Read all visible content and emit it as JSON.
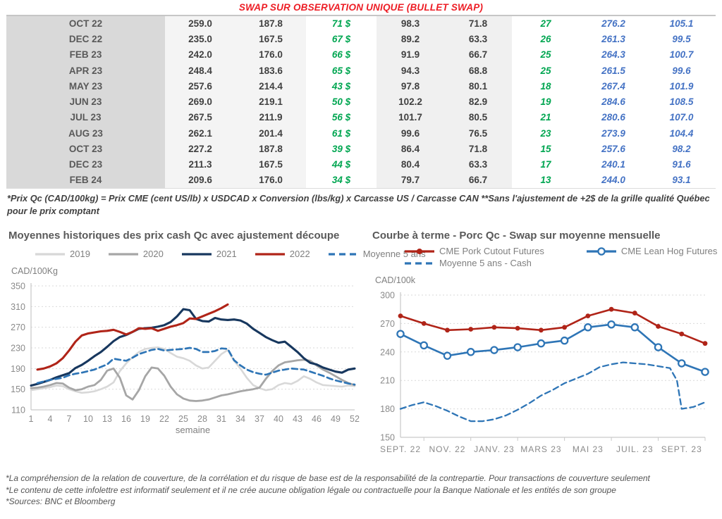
{
  "table": {
    "title": "SWAP SUR OBSERVATION UNIQUE (BULLET SWAP)",
    "rows": [
      [
        "OCT 22",
        "259.0",
        "187.8",
        "71 $",
        "98.3",
        "71.8",
        "27",
        "276.2",
        "105.1"
      ],
      [
        "DEC 22",
        "235.0",
        "167.5",
        "67 $",
        "89.2",
        "63.3",
        "26",
        "261.3",
        "99.5"
      ],
      [
        "FEB 23",
        "242.0",
        "176.0",
        "66 $",
        "91.9",
        "66.7",
        "25",
        "264.3",
        "100.7"
      ],
      [
        "APR 23",
        "248.4",
        "183.6",
        "65 $",
        "94.3",
        "68.8",
        "25",
        "261.5",
        "99.6"
      ],
      [
        "MAY 23",
        "257.6",
        "214.4",
        "43 $",
        "97.8",
        "80.1",
        "18",
        "267.4",
        "101.9"
      ],
      [
        "JUN 23",
        "269.0",
        "219.1",
        "50 $",
        "102.2",
        "82.9",
        "19",
        "284.6",
        "108.5"
      ],
      [
        "JUL 23",
        "267.5",
        "211.9",
        "56 $",
        "101.7",
        "80.5",
        "21",
        "280.6",
        "107.0"
      ],
      [
        "AUG 23",
        "262.1",
        "201.4",
        "61 $",
        "99.6",
        "76.5",
        "23",
        "273.9",
        "104.4"
      ],
      [
        "OCT 23",
        "227.2",
        "187.8",
        "39 $",
        "86.4",
        "71.8",
        "15",
        "257.6",
        "98.2"
      ],
      [
        "DEC 23",
        "211.3",
        "167.5",
        "44 $",
        "80.4",
        "63.3",
        "17",
        "240.1",
        "91.6"
      ],
      [
        "FEB 24",
        "209.6",
        "176.0",
        "34 $",
        "79.7",
        "66.7",
        "13",
        "244.0",
        "93.1"
      ]
    ],
    "footnote": "*Prix Qc (CAD/100kg) = Prix CME (cent US/lb) x USDCAD x Conversion (lbs/kg) x Carcasse US / Carcasse CAN **Sans l'ajustement de +2$ de la grille qualité Québec pour le prix comptant"
  },
  "colors": {
    "title_red": "#ed1c24",
    "green": "#00a651",
    "blue": "#4472c4",
    "grid": "#d9d9d9",
    "axis": "#c9c9c9",
    "c2019": "#d8d8d8",
    "c2020": "#a6a6a6",
    "c2021": "#17375e",
    "c2022": "#b02418",
    "c5yr": "#2e75b6"
  },
  "chart_data": [
    {
      "type": "line",
      "title": "Moyennes historiques des prix cash Qc avec ajustement découpe",
      "ylabel": "CAD/100Kg",
      "xlabel": "semaine",
      "grid": "horizontal-dashed",
      "legend_position": "top",
      "ylim": [
        110,
        350
      ],
      "x_range": [
        1,
        52
      ],
      "x_index_base": 1,
      "x_ticks": [
        1,
        4,
        7,
        10,
        13,
        16,
        19,
        22,
        25,
        28,
        31,
        34,
        37,
        40,
        43,
        46,
        49,
        52
      ],
      "y_ticks": [
        350,
        310,
        270,
        230,
        190,
        150,
        110
      ],
      "series": [
        {
          "name": "2019",
          "color_key": "c2019",
          "style": "solid",
          "width": 2.6,
          "values": [
            148,
            150,
            152,
            154,
            157,
            156,
            150,
            146,
            143,
            144,
            146,
            150,
            155,
            163,
            185,
            200,
            212,
            222,
            228,
            230,
            231,
            228,
            220,
            213,
            210,
            205,
            196,
            190,
            192,
            205,
            218,
            226,
            205,
            190,
            172,
            158,
            152,
            148,
            150,
            158,
            162,
            160,
            166,
            175,
            170,
            163,
            158,
            157,
            156,
            155,
            157,
            156
          ]
        },
        {
          "name": "2020",
          "color_key": "c2020",
          "style": "solid",
          "width": 2.8,
          "values": [
            152,
            153,
            155,
            158,
            162,
            161,
            153,
            148,
            150,
            155,
            158,
            168,
            186,
            190,
            172,
            138,
            130,
            148,
            175,
            192,
            190,
            176,
            155,
            140,
            132,
            128,
            127,
            128,
            130,
            134,
            138,
            140,
            143,
            146,
            148,
            150,
            153,
            170,
            185,
            196,
            202,
            204,
            206,
            207,
            205,
            196,
            188,
            182,
            175,
            168,
            162,
            158
          ]
        },
        {
          "name": "2021",
          "color_key": "c2021",
          "style": "solid",
          "width": 3.1,
          "values": [
            157,
            160,
            164,
            168,
            173,
            177,
            181,
            191,
            197,
            205,
            214,
            222,
            232,
            243,
            251,
            255,
            261,
            267,
            268,
            269,
            271,
            274,
            280,
            291,
            305,
            303,
            286,
            282,
            281,
            288,
            285,
            284,
            285,
            283,
            277,
            267,
            259,
            251,
            245,
            240,
            242,
            232,
            222,
            210,
            201,
            198,
            192,
            188,
            184,
            182,
            188,
            190
          ]
        },
        {
          "name": "2022",
          "color_key": "c2022",
          "style": "solid",
          "width": 3.1,
          "values": [
            null,
            188,
            190,
            194,
            200,
            210,
            225,
            242,
            254,
            258,
            260,
            262,
            263,
            265,
            261,
            256,
            261,
            268,
            267,
            268,
            263,
            267,
            271,
            274,
            278,
            287,
            286,
            291,
            296,
            301,
            307,
            314,
            null,
            null,
            null,
            null,
            null,
            null,
            null,
            null,
            null,
            null,
            null,
            null,
            null,
            null,
            null,
            null,
            null,
            null,
            null,
            null
          ]
        },
        {
          "name": "Moyenne 5 ans",
          "color_key": "c5yr",
          "style": "dashed",
          "width": 2.7,
          "values": [
            null,
            162,
            165,
            168,
            170,
            172,
            177,
            180,
            182,
            185,
            188,
            193,
            198,
            209,
            207,
            205,
            211,
            218,
            222,
            226,
            228,
            225,
            226,
            227,
            228,
            230,
            228,
            222,
            222,
            224,
            229,
            228,
            206,
            196,
            188,
            183,
            180,
            178,
            182,
            186,
            188,
            190,
            189,
            188,
            184,
            180,
            176,
            171,
            167,
            164,
            161,
            159
          ]
        }
      ]
    },
    {
      "type": "line",
      "title": "Courbe à terme - Porc Qc - Swap sur moyenne mensuelle",
      "ylabel": "CAD/100k",
      "grid": "horizontal-dashed",
      "legend_position": "top",
      "ylim": [
        150,
        300
      ],
      "x_range": [
        0,
        13
      ],
      "x_ticklabels": [
        "SEPT. 22",
        "NOV. 22",
        "JANV. 23",
        "MARS 23",
        "MAI 23",
        "JUIL. 23",
        "SEPT. 23"
      ],
      "x_ticklabel_positions": [
        0,
        2,
        4,
        6,
        8,
        10,
        12
      ],
      "x_tickmarks": [
        1,
        3,
        5,
        7,
        9,
        11,
        13
      ],
      "y_ticks": [
        300,
        270,
        240,
        210,
        180,
        150
      ],
      "series": [
        {
          "name": "CME Pork Cutout Futures",
          "color_key": "c2022",
          "style": "solid",
          "marker": "filled-circle",
          "width": 2.6,
          "x": [
            0,
            1,
            2,
            3,
            4,
            5,
            6,
            7,
            8,
            9,
            10,
            11,
            12,
            13
          ],
          "values": [
            278,
            270,
            263,
            264,
            266,
            265,
            263,
            266,
            278,
            285,
            281,
            267,
            259,
            249
          ]
        },
        {
          "name": "CME Lean Hog Futures",
          "color_key": "c5yr",
          "style": "solid",
          "marker": "open-circle",
          "width": 2.6,
          "x": [
            0,
            1,
            2,
            3,
            4,
            5,
            6,
            7,
            8,
            9,
            10,
            11,
            12,
            13
          ],
          "values": [
            259,
            247,
            236,
            240,
            242,
            245,
            249,
            252,
            266,
            269,
            266,
            245,
            228,
            219
          ]
        },
        {
          "name": "Moyenne 5 ans - Cash",
          "color_key": "c5yr",
          "style": "dashed",
          "width": 2.3,
          "x": [
            0,
            0.5,
            1,
            1.5,
            2,
            2.5,
            3,
            3.5,
            4,
            4.5,
            5,
            5.5,
            6,
            6.5,
            7,
            7.5,
            8,
            8.5,
            9,
            9.5,
            10,
            10.5,
            11,
            11.5,
            11.8,
            12,
            12.5,
            13
          ],
          "values": [
            180,
            184,
            187,
            183,
            178,
            172,
            167,
            167,
            169,
            173,
            179,
            186,
            194,
            200,
            207,
            212,
            217,
            224,
            227,
            229,
            228,
            227,
            225,
            223,
            210,
            180,
            182,
            187
          ]
        }
      ]
    }
  ],
  "footer": {
    "lines": [
      "*La compréhension de la relation de couverture, de la corrélation et du risque de base est de la responsabilité de la contrepartie. Pour transactions de couverture seulement",
      "*Le contenu de cette infolettre est informatif seulement et il ne crée aucune obligation légale ou contractuelle pour la Banque Nationale et les entités de son groupe",
      "*Sources: BNC et Bloomberg"
    ]
  }
}
